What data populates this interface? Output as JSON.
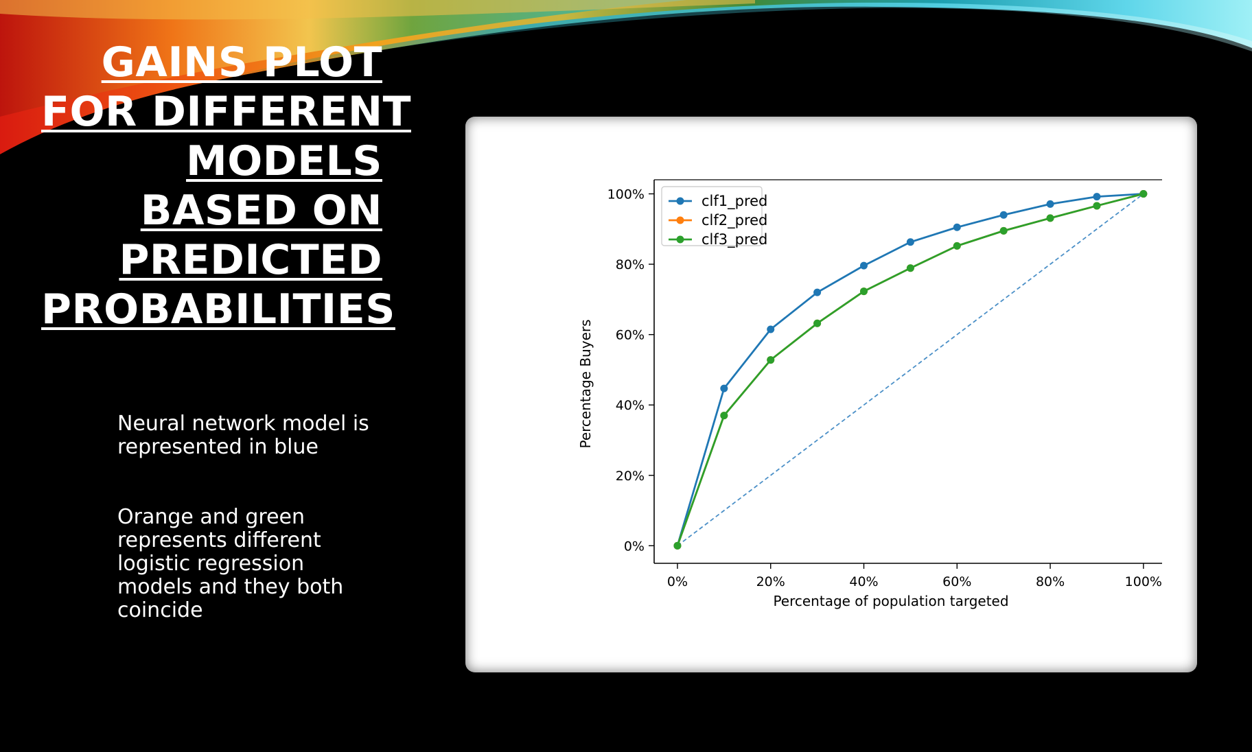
{
  "slide": {
    "title_lines": [
      "GAINS PLOT",
      "FOR DIFFERENT",
      "MODELS",
      "BASED ON",
      "PREDICTED",
      "PROBABILITIES"
    ],
    "notes": [
      [
        "Neural network model is",
        "represented in blue"
      ],
      [
        "Orange and green",
        "represents different",
        "logistic regression",
        "models and they both",
        "coincide"
      ]
    ]
  },
  "colors": {
    "blue": "#1f77b4",
    "orange": "#ff7f0e",
    "green": "#2ca02c",
    "diagonal": "#4a8fc7"
  },
  "chart_data": {
    "type": "line",
    "xlabel": "Percentage of population targeted",
    "ylabel": "Percentage Buyers",
    "x": [
      0,
      10,
      20,
      30,
      40,
      50,
      60,
      70,
      80,
      90,
      100
    ],
    "xlim": [
      -5,
      104
    ],
    "ylim": [
      -5,
      104
    ],
    "x_ticks": [
      0,
      20,
      40,
      60,
      80,
      100
    ],
    "x_tick_labels": [
      "0%",
      "20%",
      "40%",
      "60%",
      "80%",
      "100%"
    ],
    "y_ticks": [
      0,
      20,
      40,
      60,
      80,
      100
    ],
    "y_tick_labels": [
      "0%",
      "20%",
      "40%",
      "60%",
      "80%",
      "100%"
    ],
    "grid": false,
    "legend": "top-left",
    "series": [
      {
        "name": "clf1_pred",
        "color": "#1f77b4",
        "values": [
          0,
          44.7,
          61.5,
          72.0,
          79.6,
          86.3,
          90.5,
          94.0,
          97.1,
          99.2,
          100
        ]
      },
      {
        "name": "clf2_pred",
        "color": "#ff7f0e",
        "values": [
          0,
          37.0,
          52.8,
          63.2,
          72.3,
          78.9,
          85.2,
          89.5,
          93.1,
          96.6,
          100
        ]
      },
      {
        "name": "clf3_pred",
        "color": "#2ca02c",
        "values": [
          0,
          37.0,
          52.8,
          63.2,
          72.3,
          78.9,
          85.2,
          89.5,
          93.1,
          96.6,
          100
        ]
      }
    ],
    "baseline": {
      "x": [
        0,
        100
      ],
      "values": [
        0,
        100
      ],
      "style": "dashed"
    }
  }
}
